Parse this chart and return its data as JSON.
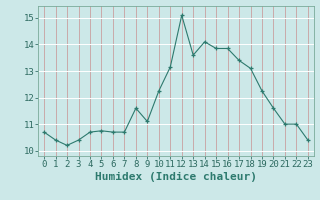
{
  "x": [
    0,
    1,
    2,
    3,
    4,
    5,
    6,
    7,
    8,
    9,
    10,
    11,
    12,
    13,
    14,
    15,
    16,
    17,
    18,
    19,
    20,
    21,
    22,
    23
  ],
  "y": [
    10.7,
    10.4,
    10.2,
    10.4,
    10.7,
    10.75,
    10.7,
    10.7,
    11.6,
    11.1,
    12.25,
    13.15,
    15.1,
    13.6,
    14.1,
    13.85,
    13.85,
    13.4,
    13.1,
    12.25,
    11.6,
    11.0,
    11.0,
    10.4
  ],
  "xlim": [
    -0.5,
    23.5
  ],
  "ylim": [
    9.8,
    15.45
  ],
  "yticks": [
    10,
    11,
    12,
    13,
    14,
    15
  ],
  "xticks": [
    0,
    1,
    2,
    3,
    4,
    5,
    6,
    7,
    8,
    9,
    10,
    11,
    12,
    13,
    14,
    15,
    16,
    17,
    18,
    19,
    20,
    21,
    22,
    23
  ],
  "xlabel": "Humidex (Indice chaleur)",
  "line_color": "#2d7a6e",
  "marker": "+",
  "bg_color": "#cce8e8",
  "hgrid_color": "#ffffff",
  "vgrid_color": "#c9a0a0",
  "xlabel_fontsize": 8,
  "tick_fontsize": 6.5,
  "xlabel_color": "#2d7a6e"
}
